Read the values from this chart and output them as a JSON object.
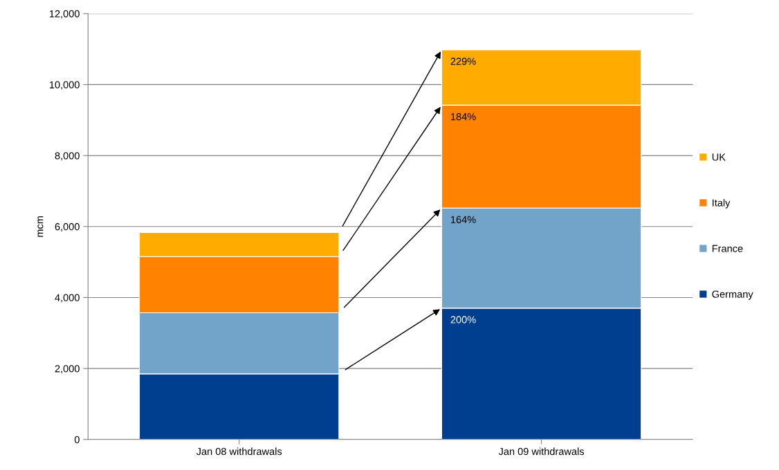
{
  "chart_data": {
    "type": "bar",
    "stacked": true,
    "ylabel": "mcm",
    "categories": [
      "Jan 08 withdrawals",
      "Jan 09 withdrawals"
    ],
    "series": [
      {
        "name": "Germany",
        "color": "#003f8f",
        "values": [
          1850,
          3700
        ]
      },
      {
        "name": "France",
        "color": "#72a3c9",
        "values": [
          1720,
          2820
        ]
      },
      {
        "name": "Italy",
        "color": "#ff8200",
        "values": [
          1580,
          2900
        ]
      },
      {
        "name": "UK",
        "color": "#ffab00",
        "values": [
          680,
          1560
        ]
      }
    ],
    "annotations": [
      "200%",
      "164%",
      "184%",
      "229%"
    ],
    "ylim": [
      0,
      12000
    ],
    "yticks": [
      {
        "value": 0,
        "label": "0"
      },
      {
        "value": 2000,
        "label": "2,000"
      },
      {
        "value": 4000,
        "label": "4,000"
      },
      {
        "value": 6000,
        "label": "6,000"
      },
      {
        "value": 8000,
        "label": "8,000"
      },
      {
        "value": 10000,
        "label": "10,000"
      },
      {
        "value": 12000,
        "label": "12,000"
      }
    ],
    "grid": "y",
    "legend": "right"
  }
}
